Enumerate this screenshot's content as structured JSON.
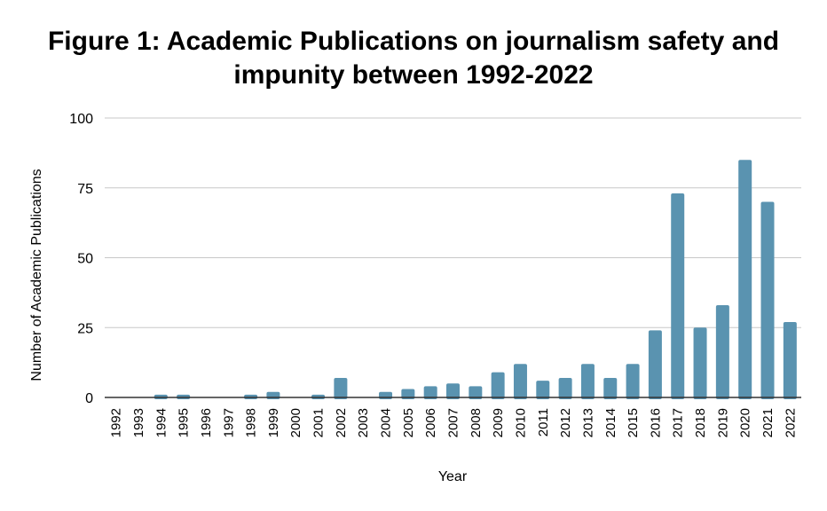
{
  "chart_data": {
    "type": "bar",
    "title_lines": [
      "Figure 1: Academic Publications on journalism safety and",
      "impunity between 1992-2022"
    ],
    "xlabel": "Year",
    "ylabel": "Number of Academic Publications",
    "ylim": [
      0,
      100
    ],
    "yticks": [
      0,
      25,
      50,
      75,
      100
    ],
    "grid": true,
    "legend": "none",
    "bar_color": "#5a93b0",
    "categories": [
      "1992",
      "1993",
      "1994",
      "1995",
      "1996",
      "1997",
      "1998",
      "1999",
      "2000",
      "2001",
      "2002",
      "2003",
      "2004",
      "2005",
      "2006",
      "2007",
      "2008",
      "2009",
      "2010",
      "2011",
      "2012",
      "2013",
      "2014",
      "2015",
      "2016",
      "2017",
      "2018",
      "2019",
      "2020",
      "2021",
      "2022"
    ],
    "values": [
      0,
      0,
      1,
      1,
      0,
      0,
      1,
      2,
      0,
      1,
      7,
      0,
      2,
      3,
      4,
      5,
      4,
      9,
      12,
      6,
      7,
      12,
      7,
      12,
      24,
      73,
      25,
      33,
      85,
      70,
      27
    ]
  }
}
